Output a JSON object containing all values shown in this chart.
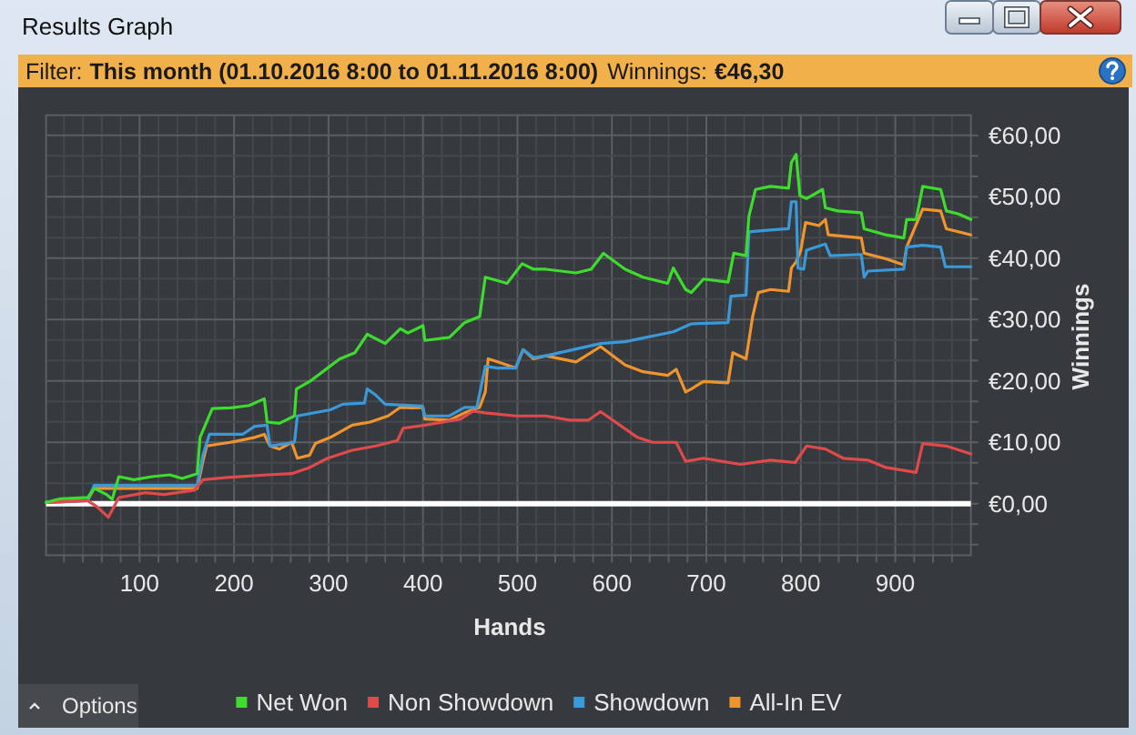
{
  "chart_data": {
    "type": "line",
    "title": "Results Graph",
    "xlabel": "Hands",
    "ylabel": "Winnings",
    "annotations": [
      "Filter:",
      "This month (01.10.2016 8:00 to 01.11.2016 8:00)",
      "Winnings:",
      "€46,30",
      "Options"
    ],
    "xlim": [
      1,
      980
    ],
    "ylim": [
      -8.4,
      63.3
    ],
    "xticks": [
      {
        "value": 20,
        "label": null
      },
      {
        "value": 40,
        "label": null
      },
      {
        "value": 60,
        "label": null
      },
      {
        "value": 80,
        "label": null
      },
      100,
      {
        "value": 120,
        "label": null
      },
      {
        "value": 140,
        "label": null
      },
      {
        "value": 160,
        "label": null
      },
      {
        "value": 180,
        "label": null
      },
      200,
      {
        "value": 220,
        "label": null
      },
      {
        "value": 240,
        "label": null
      },
      {
        "value": 260,
        "label": null
      },
      {
        "value": 280,
        "label": null
      },
      300,
      {
        "value": 320,
        "label": null
      },
      {
        "value": 340,
        "label": null
      },
      {
        "value": 360,
        "label": null
      },
      {
        "value": 380,
        "label": null
      },
      400,
      {
        "value": 420,
        "label": null
      },
      {
        "value": 440,
        "label": null
      },
      {
        "value": 460,
        "label": null
      },
      {
        "value": 480,
        "label": null
      },
      500,
      {
        "value": 520,
        "label": null
      },
      {
        "value": 540,
        "label": null
      },
      {
        "value": 560,
        "label": null
      },
      {
        "value": 580,
        "label": null
      },
      600,
      {
        "value": 620,
        "label": null
      },
      {
        "value": 640,
        "label": null
      },
      {
        "value": 660,
        "label": null
      },
      {
        "value": 680,
        "label": null
      },
      700,
      {
        "value": 720,
        "label": null
      },
      {
        "value": 740,
        "label": null
      },
      {
        "value": 760,
        "label": null
      },
      {
        "value": 780,
        "label": null
      },
      800,
      {
        "value": 820,
        "label": null
      },
      {
        "value": 840,
        "label": null
      },
      {
        "value": 860,
        "label": null
      },
      {
        "value": 880,
        "label": null
      },
      900,
      {
        "value": 920,
        "label": null
      },
      {
        "value": 940,
        "label": null
      },
      {
        "value": 960,
        "label": null
      }
    ],
    "yticks": [
      {
        "value": -6.67,
        "label": null
      },
      {
        "value": -3.33,
        "label": null
      },
      {
        "value": 0,
        "label": "€0,00"
      },
      {
        "value": 3.33,
        "label": null
      },
      {
        "value": 6.67,
        "label": null
      },
      {
        "value": 10,
        "label": "€10,00"
      },
      {
        "value": 13.33,
        "label": null
      },
      {
        "value": 16.67,
        "label": null
      },
      {
        "value": 20,
        "label": "€20,00"
      },
      {
        "value": 23.33,
        "label": null
      },
      {
        "value": 26.67,
        "label": null
      },
      {
        "value": 30,
        "label": "€30,00"
      },
      {
        "value": 33.33,
        "label": null
      },
      {
        "value": 36.67,
        "label": null
      },
      {
        "value": 40,
        "label": "€40,00"
      },
      {
        "value": 43.33,
        "label": null
      },
      {
        "value": 46.67,
        "label": null
      },
      {
        "value": 50,
        "label": "€50,00"
      },
      {
        "value": 53.33,
        "label": null
      },
      {
        "value": 56.67,
        "label": null
      },
      {
        "value": 60,
        "label": "€60,00"
      }
    ],
    "grid": true,
    "legend": "bottom",
    "ref_lines": [
      {
        "axis": "y",
        "value": 0,
        "color": "#ffffff"
      }
    ],
    "series": [
      {
        "name": "Net Won",
        "color": "#3ddc2e",
        "x": [
          1,
          16,
          45,
          52,
          65,
          71,
          78,
          94,
          113,
          132,
          145,
          161,
          164,
          177,
          196,
          216,
          232,
          235,
          248,
          264,
          266,
          280,
          299,
          312,
          328,
          341,
          360,
          376,
          384,
          400,
          402,
          428,
          444,
          460,
          466,
          489,
          505,
          517,
          530,
          562,
          578,
          591,
          614,
          633,
          659,
          665,
          678,
          684,
          697,
          723,
          729,
          742,
          745,
          752,
          768,
          787,
          790,
          795,
          799,
          806,
          823,
          826,
          839,
          864,
          867,
          890,
          909,
          912,
          922,
          929,
          948,
          954,
          967,
          980
        ],
        "values": [
          0.2,
          0.8,
          1,
          2.5,
          1.5,
          0.7,
          4.4,
          3.9,
          4.4,
          4.7,
          4.1,
          4.9,
          10.8,
          15.5,
          15.6,
          16,
          17.1,
          13.3,
          13.1,
          14.3,
          18.7,
          19.9,
          22.1,
          23.6,
          24.6,
          27.6,
          26.1,
          28.5,
          27.8,
          29,
          26.6,
          27.1,
          29.5,
          30.5,
          36.9,
          35.9,
          39.1,
          38.2,
          38.2,
          37.6,
          38.2,
          40.8,
          38.2,
          36.9,
          35.9,
          38.4,
          34.9,
          34.4,
          36.6,
          36.1,
          40.8,
          40.4,
          46.8,
          51.2,
          51.7,
          51.4,
          55.6,
          56.9,
          50.2,
          49.7,
          51.2,
          48.2,
          47.7,
          47.4,
          44.8,
          43.8,
          43.3,
          46.3,
          46.3,
          51.7,
          51.2,
          47.7,
          47.2,
          46.3
        ]
      },
      {
        "name": "Non Showdown",
        "color": "#e04a4a",
        "x": [
          1,
          45,
          55,
          67,
          78,
          106,
          126,
          158,
          167,
          196,
          235,
          261,
          280,
          299,
          325,
          350,
          373,
          379,
          402,
          440,
          453,
          466,
          498,
          530,
          556,
          575,
          588,
          627,
          643,
          668,
          678,
          697,
          736,
          768,
          794,
          806,
          826,
          845,
          871,
          890,
          922,
          929,
          954,
          980
        ],
        "values": [
          0.2,
          0.5,
          -0.5,
          -2.2,
          1,
          1.8,
          1.5,
          2.2,
          3.9,
          4.3,
          4.7,
          4.9,
          5.9,
          7.4,
          8.7,
          9.4,
          10.3,
          12.3,
          12.8,
          13.8,
          15.1,
          14.8,
          14.3,
          14.3,
          13.6,
          13.6,
          15,
          10.8,
          10,
          10,
          6.9,
          7.4,
          6.4,
          7.1,
          6.7,
          9.4,
          8.9,
          7.4,
          7.1,
          5.9,
          5.1,
          9.8,
          9.4,
          8.1
        ]
      },
      {
        "name": "Showdown",
        "color": "#3a9ad9",
        "x": [
          1,
          45,
          52,
          81,
          161,
          167,
          174,
          209,
          222,
          235,
          238,
          264,
          267,
          302,
          315,
          338,
          341,
          350,
          360,
          399,
          402,
          428,
          444,
          457,
          466,
          479,
          498,
          506,
          517,
          530,
          588,
          614,
          665,
          684,
          723,
          726,
          742,
          745,
          761,
          787,
          790,
          795,
          797,
          803,
          806,
          826,
          831,
          864,
          867,
          871,
          909,
          912,
          929,
          948,
          953,
          980
        ],
        "values": [
          0.2,
          0.5,
          3,
          3,
          3,
          7.9,
          11.3,
          11.3,
          12.6,
          12.8,
          9.4,
          10,
          14.3,
          15.3,
          16.2,
          16.4,
          18.7,
          17.7,
          16.2,
          15.9,
          14.3,
          14.3,
          15.7,
          15.7,
          22.4,
          22.1,
          22.1,
          25.1,
          23.8,
          24.1,
          26.1,
          26.4,
          28,
          29.3,
          29.5,
          33.8,
          34,
          44.3,
          44.5,
          44.8,
          49.2,
          49.2,
          38.4,
          38.2,
          41.3,
          42.3,
          40.4,
          40.6,
          36.9,
          37.9,
          38.2,
          41.8,
          42.1,
          41.8,
          38.6,
          38.6
        ]
      },
      {
        "name": "All-In EV",
        "color": "#f0952e",
        "x": [
          1,
          45,
          52,
          81,
          161,
          167,
          171,
          196,
          222,
          232,
          238,
          248,
          261,
          267,
          280,
          286,
          302,
          325,
          344,
          363,
          376,
          389,
          400,
          402,
          428,
          444,
          460,
          466,
          469,
          479,
          498,
          506,
          517,
          530,
          562,
          588,
          614,
          633,
          659,
          668,
          678,
          684,
          697,
          723,
          728,
          742,
          749,
          755,
          768,
          787,
          790,
          795,
          800,
          805,
          819,
          826,
          829,
          864,
          867,
          890,
          909,
          912,
          929,
          948,
          954,
          980
        ],
        "values": [
          0.2,
          0.5,
          2.5,
          2.5,
          2.5,
          6.9,
          9.4,
          10,
          10.8,
          11.3,
          9.4,
          8.9,
          10,
          7.4,
          7.9,
          9.8,
          10.8,
          12.8,
          13.3,
          14.3,
          15.7,
          15.6,
          15.7,
          13.8,
          13.6,
          14.8,
          15.7,
          18.2,
          23.6,
          23.1,
          22.1,
          25.1,
          23.6,
          24.1,
          23.1,
          25.6,
          22.6,
          21.5,
          20.9,
          21.9,
          18.2,
          18.7,
          19.9,
          19.7,
          24.6,
          23.6,
          30.5,
          34.4,
          34.9,
          34.6,
          38.4,
          39.4,
          41.3,
          45.8,
          45.3,
          46.3,
          43.8,
          43.3,
          40.8,
          39.9,
          38.9,
          41.8,
          48,
          47.7,
          44.8,
          43.8
        ]
      }
    ]
  }
}
